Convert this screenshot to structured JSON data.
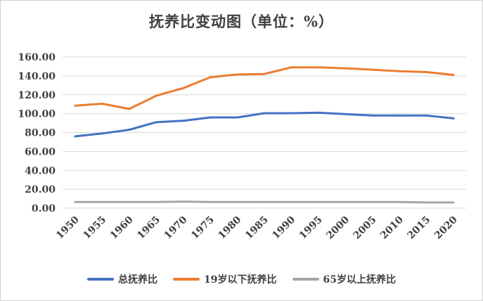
{
  "chart_data": {
    "type": "line",
    "title": "抚养比变动图（单位：%）",
    "xlabel": "",
    "ylabel": "",
    "x": [
      "1950",
      "1955",
      "1960",
      "1965",
      "1970",
      "1975",
      "1980",
      "1985",
      "1990",
      "1995",
      "2000",
      "2005",
      "2010",
      "2015",
      "2020"
    ],
    "ylim": [
      0,
      160
    ],
    "y_ticks": [
      "0.00",
      "20.00",
      "40.00",
      "60.00",
      "80.00",
      "100.00",
      "120.00",
      "140.00",
      "160.00"
    ],
    "grid": true,
    "legend_position": "bottom",
    "series": [
      {
        "name": "总抚养比",
        "color": "#4472C4",
        "values": [
          76,
          79,
          83,
          91,
          92.5,
          96,
          96,
          100.5,
          100.5,
          101,
          99.5,
          98,
          98,
          98,
          95
        ]
      },
      {
        "name": "19岁以下抚养比",
        "color": "#ED7D31",
        "values": [
          108.5,
          110.5,
          105,
          119,
          127,
          138.5,
          141.5,
          142,
          149,
          149,
          148,
          146.5,
          145,
          144,
          141
        ]
      },
      {
        "name": "65岁以上抚养比",
        "color": "#A5A5A5",
        "values": [
          6.5,
          6.5,
          6.5,
          6.5,
          7,
          6.5,
          6.5,
          6.5,
          6.5,
          6.5,
          6.5,
          6.5,
          6.5,
          6,
          6
        ]
      }
    ]
  }
}
